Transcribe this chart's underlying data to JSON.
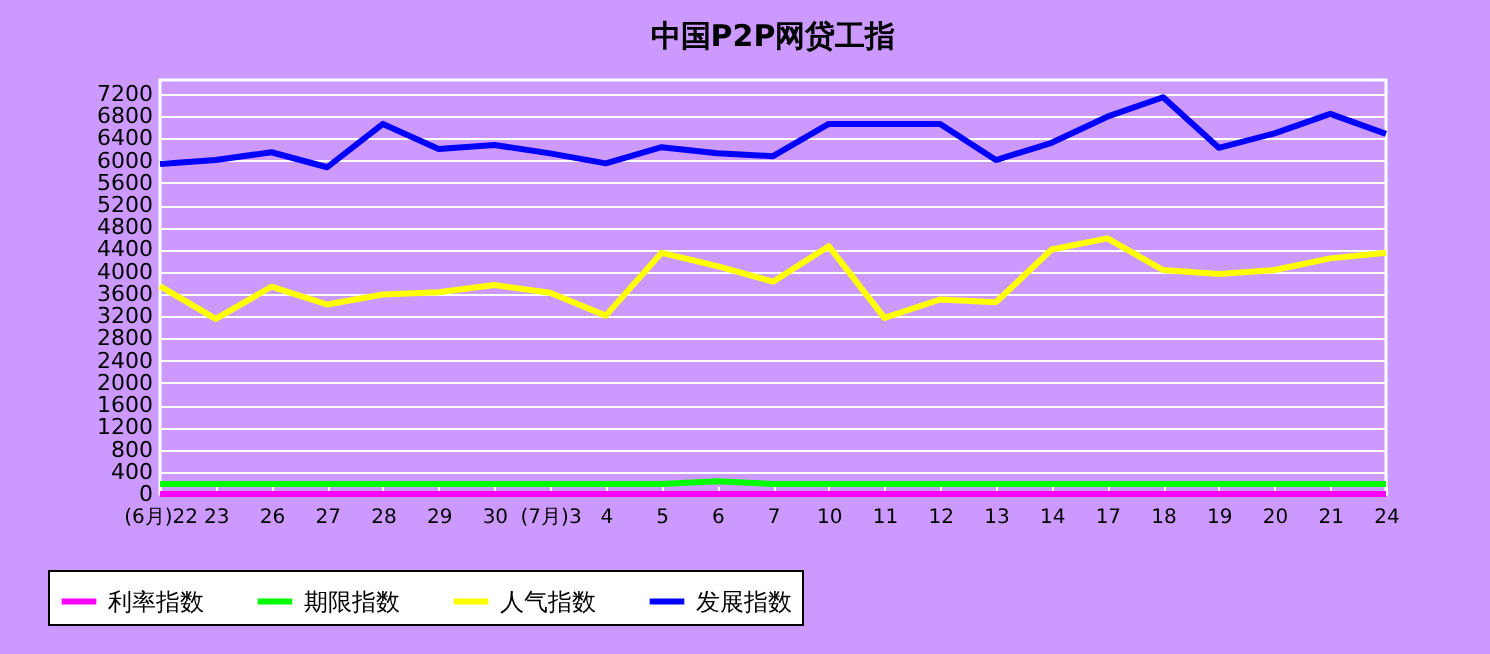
{
  "chart_data": {
    "type": "line",
    "title": "中国P2P网贷工指",
    "categories": [
      "(6月)22",
      "23",
      "26",
      "27",
      "28",
      "29",
      "30",
      "(7月)3",
      "4",
      "5",
      "6",
      "7",
      "10",
      "11",
      "12",
      "13",
      "14",
      "17",
      "18",
      "19",
      "20",
      "21",
      "24"
    ],
    "series": [
      {
        "name": "利率指数",
        "color": "#ff00ff",
        "values": [
          0,
          0,
          0,
          0,
          0,
          0,
          0,
          0,
          0,
          0,
          0,
          0,
          0,
          0,
          0,
          0,
          0,
          0,
          0,
          0,
          0,
          0,
          0
        ]
      },
      {
        "name": "期限指数",
        "color": "#00ff00",
        "values": [
          180,
          180,
          180,
          180,
          180,
          180,
          180,
          180,
          180,
          180,
          230,
          180,
          180,
          180,
          180,
          180,
          180,
          180,
          180,
          180,
          180,
          180,
          180
        ]
      },
      {
        "name": "人气指数",
        "color": "#ffff00",
        "values": [
          3740,
          3150,
          3730,
          3410,
          3590,
          3630,
          3760,
          3620,
          3210,
          4340,
          4100,
          3820,
          4460,
          3170,
          3500,
          3450,
          4400,
          4600,
          4030,
          3960,
          4030,
          4240,
          4340
        ]
      },
      {
        "name": "发展指数",
        "color": "#0000ff",
        "values": [
          5940,
          6010,
          6150,
          5880,
          6660,
          6210,
          6280,
          6130,
          5950,
          6240,
          6130,
          6080,
          6660,
          6660,
          6660,
          6010,
          6320,
          6790,
          7140,
          6230,
          6490,
          6840,
          6480
        ]
      }
    ],
    "ylim": [
      0,
      7450
    ],
    "yticks": [
      0,
      400,
      800,
      1200,
      1600,
      2000,
      2400,
      2800,
      3200,
      3600,
      4000,
      4400,
      4800,
      5200,
      5600,
      6000,
      6400,
      6800,
      7200
    ],
    "grid": "y",
    "legend": "bottom left"
  }
}
